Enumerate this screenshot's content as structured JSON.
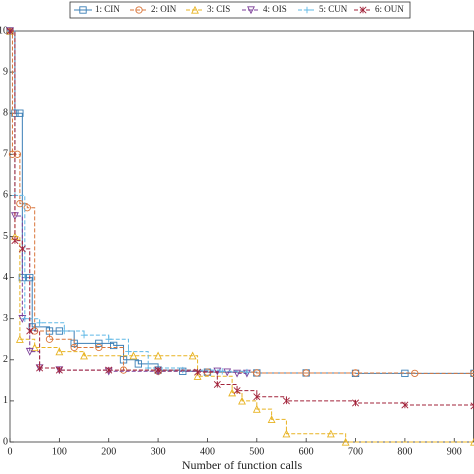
{
  "chart_data": {
    "type": "line",
    "step": true,
    "xlabel": "Number of function calls",
    "xlim": [
      0,
      940
    ],
    "ylim": [
      0,
      10
    ],
    "xticks": [
      0,
      100,
      200,
      300,
      400,
      500,
      600,
      700,
      800,
      900
    ],
    "yticks": [
      0,
      1,
      2,
      3,
      4,
      5,
      6,
      7,
      8,
      9,
      10
    ],
    "legend": "top",
    "series": [
      {
        "name": "1: CIN",
        "color": "#3b7fb6",
        "marker": "square",
        "line_style": "solid",
        "x": [
          0,
          10,
          20,
          25,
          40,
          45,
          80,
          100,
          130,
          180,
          210,
          230,
          260,
          300,
          350,
          400,
          500,
          600,
          700,
          800,
          940
        ],
        "values": [
          10,
          8,
          8,
          4,
          4,
          2.8,
          2.7,
          2.7,
          2.4,
          2.4,
          2.35,
          2.0,
          1.9,
          1.75,
          1.72,
          1.7,
          1.68,
          1.68,
          1.67,
          1.67,
          1.67
        ]
      },
      {
        "name": "2: OIN",
        "color": "#d9753a",
        "marker": "circle",
        "line_style": "dashed",
        "x": [
          0,
          5,
          15,
          20,
          35,
          50,
          80,
          130,
          180,
          230,
          300,
          400,
          500,
          600,
          700,
          820,
          940
        ],
        "values": [
          10,
          7,
          7,
          5.8,
          5.7,
          2.7,
          2.5,
          2.3,
          2.3,
          1.75,
          1.72,
          1.7,
          1.68,
          1.68,
          1.68,
          1.67,
          1.67
        ]
      },
      {
        "name": "3: CIS",
        "color": "#e8b322",
        "marker": "triangle",
        "line_style": "dashed",
        "x": [
          0,
          10,
          20,
          50,
          100,
          150,
          250,
          300,
          370,
          380,
          450,
          470,
          500,
          530,
          560,
          650,
          680,
          940
        ],
        "values": [
          10,
          5,
          2.5,
          2.3,
          2.2,
          2.1,
          2.1,
          2.1,
          2.1,
          1.6,
          1.2,
          1.0,
          0.8,
          0.55,
          0.2,
          0.2,
          0,
          0
        ]
      },
      {
        "name": "4: OIS",
        "color": "#7b3d98",
        "marker": "triangle-down",
        "line_style": "dashed",
        "x": [
          0,
          10,
          25,
          40,
          60,
          100,
          200,
          300,
          420,
          440,
          460,
          480
        ],
        "values": [
          10,
          5.5,
          3,
          2.2,
          1.8,
          1.75,
          1.72,
          1.72,
          1.72,
          1.7,
          1.67,
          1.67
        ]
      },
      {
        "name": "5: CUN",
        "color": "#5fb8e6",
        "marker": "plus",
        "line_style": "dashed",
        "x": [
          0,
          10,
          30,
          60,
          110,
          150,
          200,
          240,
          280,
          350,
          430,
          480
        ],
        "values": [
          10,
          6,
          3,
          2.9,
          2.7,
          2.6,
          2.5,
          2.2,
          1.8,
          1.75,
          1.72,
          1.7
        ]
      },
      {
        "name": "6: OUN",
        "color": "#a2233a",
        "marker": "star",
        "line_style": "dashed",
        "x": [
          0,
          10,
          25,
          40,
          60,
          100,
          200,
          300,
          380,
          420,
          460,
          500,
          560,
          700,
          800,
          940
        ],
        "values": [
          10,
          4.9,
          4.7,
          2.7,
          1.8,
          1.75,
          1.75,
          1.75,
          1.7,
          1.4,
          1.25,
          1.1,
          1.0,
          0.95,
          0.9,
          0.88
        ]
      }
    ]
  }
}
